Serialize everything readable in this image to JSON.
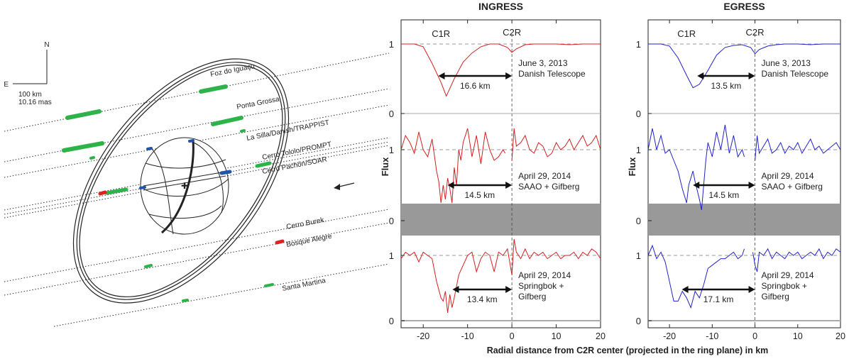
{
  "diagram": {
    "compass": {
      "north": "N",
      "east": "E",
      "scale_km": "100 km",
      "scale_mas": "10.16 mas"
    },
    "stations": [
      {
        "id": "foz",
        "label": "Foz do Iguaçu"
      },
      {
        "id": "ponta",
        "label": "Ponta Grossa"
      },
      {
        "id": "lasilla",
        "label": "La Silla/Danish/TRAPPIST"
      },
      {
        "id": "tololo",
        "label": "Cerro Tololo/PROMPT"
      },
      {
        "id": "pachon",
        "label": "Cerro Pachón/SOAR"
      },
      {
        "id": "burek",
        "label": "Cerro Burek"
      },
      {
        "id": "bosque",
        "label": "Bosque Alegre"
      },
      {
        "id": "santa",
        "label": "Santa Martina"
      }
    ],
    "colors": {
      "detection": "#2db34a",
      "negative": "#e02020",
      "blue": "#2255aa"
    }
  },
  "chart_data": [
    {
      "type": "line",
      "title": "INGRESS",
      "xlabel": "Radial distance from C2R center (projected in the ring plane) in km",
      "ylabel": "Flux",
      "xlim": [
        -25,
        20
      ],
      "xticks": [
        -20,
        -10,
        0,
        10,
        20
      ],
      "color": "#d42020",
      "ring_labels": [
        "C1R",
        "C2R"
      ],
      "panels": [
        {
          "event": [
            "June 3, 2013",
            "Danish Telescope"
          ],
          "width_label": "16.6 km",
          "width_km": 16.6,
          "x": [
            -25,
            -22,
            -20,
            -18,
            -16,
            -14.8,
            -13,
            -11,
            -9,
            -7,
            -5,
            -3,
            -1,
            0,
            1,
            3,
            5,
            7,
            10,
            13,
            16,
            20
          ],
          "y": [
            1.0,
            1.0,
            0.96,
            0.72,
            0.45,
            0.25,
            0.5,
            0.74,
            0.87,
            0.96,
            1.0,
            1.0,
            0.95,
            0.88,
            0.93,
            0.99,
            1.0,
            1.0,
            1.0,
            0.99,
            1.0,
            1.0
          ]
        },
        {
          "event": [
            "April 29, 2014",
            "SAAO + Gifberg"
          ],
          "width_label": "14.5 km",
          "width_km": 14.5,
          "x": [
            -25,
            -24,
            -23,
            -22,
            -21,
            -20,
            -19,
            -18,
            -17,
            -16.5,
            -16,
            -15.5,
            -15,
            -14.5,
            -14,
            -13.5,
            -13,
            -12.5,
            -12,
            -11.5,
            -11,
            -10,
            -9,
            -8,
            -7,
            -6,
            -5,
            -4,
            -3,
            -2,
            -1.5,
            null,
            0,
            0.5,
            1,
            2,
            3,
            4,
            5,
            6,
            7,
            8,
            9,
            10,
            11,
            12,
            13,
            14,
            15,
            16,
            17,
            18,
            19,
            20
          ],
          "y": [
            1.0,
            1.2,
            1.1,
            0.95,
            1.25,
            1.0,
            0.9,
            1.15,
            0.7,
            0.55,
            0.25,
            0.5,
            0.3,
            0.6,
            0.45,
            0.25,
            0.75,
            0.5,
            1.0,
            0.85,
            1.1,
            1.3,
            0.9,
            1.2,
            0.8,
            1.25,
            1.0,
            0.85,
            0.9,
            1.0,
            0.95,
            null,
            0.85,
            1.3,
            1.05,
            1.1,
            1.2,
            1.0,
            0.95,
            1.1,
            1.05,
            0.9,
            0.95,
            1.1,
            1.0,
            1.05,
            1.15,
            1.0,
            1.1,
            1.2,
            1.05,
            1.1,
            1.2,
            1.0
          ]
        },
        {
          "event": [
            "April 29, 2014",
            "Springbok +",
            "Gifberg"
          ],
          "width_label": "13.4 km",
          "width_km": 13.4,
          "x": [
            -25,
            -24,
            -23,
            -22,
            -21,
            -20,
            -19,
            -18,
            -17,
            -16,
            -15.5,
            -15,
            -14.5,
            -14,
            -13.5,
            -13,
            -12,
            -11,
            -10,
            -9,
            -8,
            -7,
            -6,
            -5,
            -4,
            -3,
            -2,
            -1,
            0,
            0.5,
            1,
            2,
            3,
            4,
            5,
            6,
            7,
            8,
            9,
            10,
            11,
            12,
            13,
            14,
            15,
            16,
            17,
            18,
            19,
            20
          ],
          "y": [
            0.95,
            1.05,
            1.0,
            1.05,
            0.9,
            1.05,
            1.0,
            0.95,
            0.6,
            0.35,
            0.3,
            0.45,
            0.12,
            0.4,
            0.2,
            0.35,
            0.7,
            0.85,
            1.0,
            1.05,
            0.75,
            0.95,
            1.05,
            1.0,
            0.75,
            1.05,
            1.0,
            1.1,
            0.7,
            1.25,
            1.05,
            0.95,
            1.1,
            0.95,
            1.05,
            1.0,
            1.05,
            0.95,
            1.0,
            1.05,
            0.95,
            1.0,
            1.0,
            1.05,
            0.95,
            1.05,
            1.0,
            1.1,
            1.05,
            0.95
          ]
        }
      ]
    },
    {
      "type": "line",
      "title": "EGRESS",
      "xlabel": "Radial distance from C2R center (projected in the ring plane) in km",
      "ylabel": "Flux",
      "xlim": [
        -25,
        20
      ],
      "xticks": [
        -20,
        -10,
        0,
        10,
        20
      ],
      "color": "#2222cc",
      "ring_labels": [
        "C1R",
        "C2R"
      ],
      "panels": [
        {
          "event": [
            "June 3, 2013",
            "Danish Telescope"
          ],
          "width_label": "13.5 km",
          "width_km": 13.5,
          "x": [
            -25,
            -22,
            -20,
            -18,
            -16,
            -14.5,
            -13,
            -11,
            -9,
            -7,
            -5,
            -3,
            -1,
            0,
            1,
            3,
            5,
            7,
            10,
            13,
            16,
            20
          ],
          "y": [
            1.0,
            1.0,
            0.97,
            0.8,
            0.55,
            0.37,
            0.42,
            0.62,
            0.84,
            0.95,
            0.98,
            0.99,
            0.95,
            0.86,
            0.92,
            0.97,
            0.99,
            1.0,
            1.0,
            0.99,
            1.0,
            1.0
          ]
        },
        {
          "event": [
            "April 29, 2014",
            "SAAO + Gifberg"
          ],
          "width_label": "14.5 km",
          "width_km": 14.5,
          "x": [
            -25,
            -24,
            -23,
            -22,
            -21,
            -20,
            -19,
            -18,
            -17,
            -16,
            -15.5,
            -15,
            -14.5,
            -14,
            -13,
            -12.5,
            -12,
            -11.5,
            -11,
            -10,
            -9,
            -8,
            -7,
            -6,
            -5,
            -4,
            -3,
            -2.5,
            null,
            0,
            0.5,
            1,
            2,
            3,
            4,
            5,
            6,
            7,
            8,
            9,
            10,
            11,
            12,
            13,
            14,
            15,
            16,
            17,
            18,
            19,
            20
          ],
          "y": [
            1.0,
            1.3,
            1.0,
            1.2,
            0.95,
            1.0,
            0.85,
            0.7,
            0.45,
            0.25,
            0.5,
            0.6,
            0.7,
            0.55,
            0.3,
            0.15,
            0.5,
            0.85,
            1.1,
            0.9,
            1.25,
            1.0,
            1.35,
            0.95,
            1.2,
            0.9,
            1.0,
            0.9,
            null,
            0.85,
            1.2,
            0.95,
            1.05,
            1.15,
            0.95,
            1.0,
            1.1,
            0.95,
            1.05,
            1.0,
            1.1,
            0.95,
            1.05,
            1.15,
            1.0,
            1.05,
            0.95,
            1.0,
            1.05,
            1.1,
            1.0
          ]
        },
        {
          "event": [
            "April 29, 2014",
            "Springbok +",
            "Gifberg"
          ],
          "width_label": "17.1 km",
          "width_km": 17.1,
          "x": [
            -25,
            -24,
            -23,
            -22,
            -21,
            -20,
            -19,
            -18,
            -17,
            -16,
            -15,
            -14,
            -13,
            -12,
            -11,
            -10,
            -9,
            -8,
            -7,
            -6,
            -5,
            -4,
            -3,
            -2.5,
            null,
            -0.5,
            0,
            0.5,
            1,
            2,
            3,
            4,
            5,
            6,
            7,
            8,
            9,
            10,
            11,
            12,
            13,
            14,
            15,
            16,
            17,
            18,
            19,
            20
          ],
          "y": [
            1.0,
            1.15,
            0.95,
            1.05,
            0.9,
            0.6,
            0.3,
            0.3,
            0.45,
            0.35,
            0.2,
            0.45,
            0.35,
            0.55,
            0.8,
            0.85,
            0.9,
            0.95,
            0.95,
            1.0,
            1.05,
            0.95,
            1.0,
            1.1,
            null,
            1.05,
            0.85,
            0.75,
            1.05,
            1.0,
            1.1,
            0.95,
            1.05,
            1.0,
            0.95,
            1.05,
            1.0,
            1.05,
            0.95,
            1.0,
            1.05,
            1.0,
            1.1,
            0.95,
            1.05,
            1.0,
            1.1,
            1.05
          ]
        }
      ]
    }
  ]
}
